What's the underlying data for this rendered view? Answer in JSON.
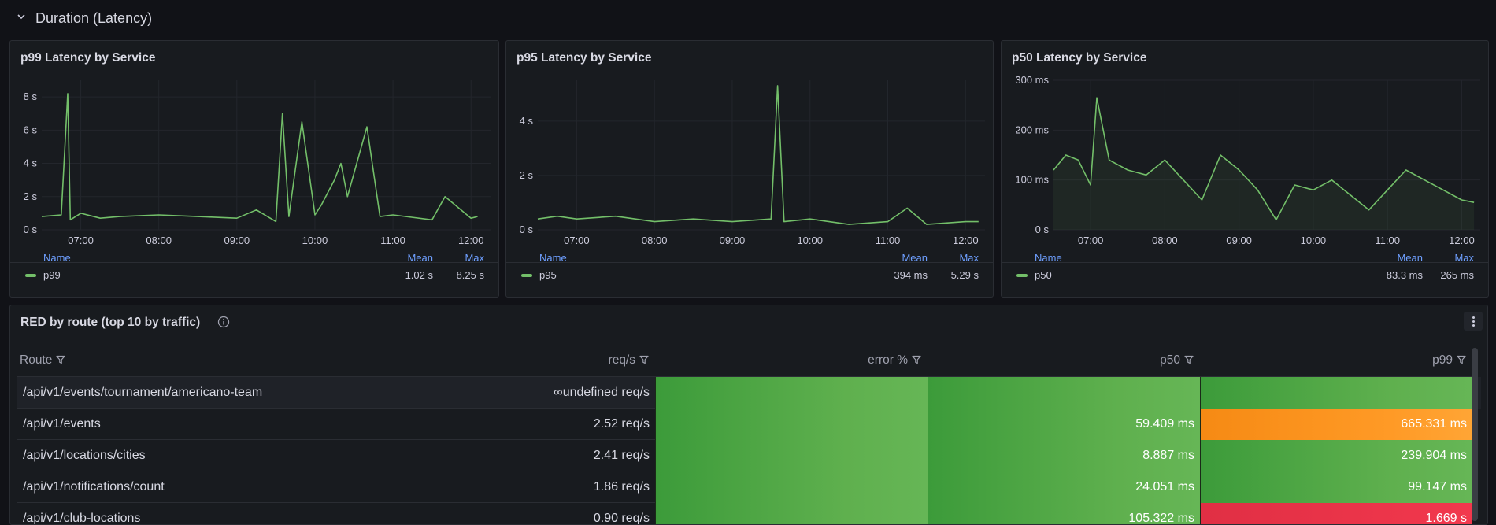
{
  "row": {
    "title": "Duration (Latency)"
  },
  "panels": [
    {
      "title": "p99 Latency by Service",
      "y_ticks": [
        "8 s",
        "6 s",
        "4 s",
        "2 s",
        "0 s"
      ],
      "x_ticks": [
        "07:00",
        "08:00",
        "09:00",
        "10:00",
        "11:00",
        "12:00"
      ],
      "legend": {
        "name_header": "Name",
        "mean_header": "Mean",
        "max_header": "Max",
        "series": "p99",
        "mean": "1.02 s",
        "max": "8.25 s"
      }
    },
    {
      "title": "p95 Latency by Service",
      "y_ticks": [
        "4 s",
        "2 s",
        "0 s"
      ],
      "x_ticks": [
        "07:00",
        "08:00",
        "09:00",
        "10:00",
        "11:00",
        "12:00"
      ],
      "legend": {
        "name_header": "Name",
        "mean_header": "Mean",
        "max_header": "Max",
        "series": "p95",
        "mean": "394 ms",
        "max": "5.29 s"
      }
    },
    {
      "title": "p50 Latency by Service",
      "y_ticks": [
        "300 ms",
        "200 ms",
        "100 ms",
        "0 s"
      ],
      "x_ticks": [
        "07:00",
        "08:00",
        "09:00",
        "10:00",
        "11:00",
        "12:00"
      ],
      "legend": {
        "name_header": "Name",
        "mean_header": "Mean",
        "max_header": "Max",
        "series": "p50",
        "mean": "83.3 ms",
        "max": "265 ms"
      }
    }
  ],
  "chart_data": [
    {
      "type": "line",
      "title": "p99 Latency by Service",
      "series": [
        {
          "name": "p99",
          "unit": "s",
          "x": [
            "06:30",
            "06:45",
            "06:50",
            "06:52",
            "07:00",
            "07:15",
            "07:30",
            "08:00",
            "08:30",
            "09:00",
            "09:15",
            "09:30",
            "09:35",
            "09:40",
            "09:50",
            "10:00",
            "10:05",
            "10:15",
            "10:20",
            "10:25",
            "10:40",
            "10:50",
            "11:00",
            "11:30",
            "11:40",
            "12:00",
            "12:05"
          ],
          "values": [
            0.8,
            0.9,
            8.2,
            0.6,
            1.0,
            0.7,
            0.8,
            0.9,
            0.8,
            0.7,
            1.2,
            0.5,
            7.0,
            0.8,
            6.5,
            0.9,
            1.5,
            3.0,
            4.0,
            2.0,
            6.2,
            0.8,
            0.9,
            0.6,
            2.0,
            0.7,
            0.8
          ]
        }
      ],
      "ylim": [
        0,
        9
      ],
      "grid": true,
      "legend": "bottom"
    },
    {
      "type": "line",
      "title": "p95 Latency by Service",
      "series": [
        {
          "name": "p95",
          "unit": "s",
          "x": [
            "06:30",
            "06:45",
            "07:00",
            "07:30",
            "08:00",
            "08:30",
            "09:00",
            "09:30",
            "09:35",
            "09:40",
            "10:00",
            "10:30",
            "11:00",
            "11:15",
            "11:30",
            "12:00",
            "12:10"
          ],
          "values": [
            0.4,
            0.5,
            0.4,
            0.5,
            0.3,
            0.4,
            0.3,
            0.4,
            5.3,
            0.3,
            0.4,
            0.2,
            0.3,
            0.8,
            0.2,
            0.3,
            0.3
          ]
        }
      ],
      "ylim": [
        0,
        5.5
      ],
      "grid": true,
      "legend": "bottom"
    },
    {
      "type": "line",
      "title": "p50 Latency by Service",
      "series": [
        {
          "name": "p50",
          "unit": "ms",
          "x": [
            "06:30",
            "06:40",
            "06:50",
            "07:00",
            "07:05",
            "07:15",
            "07:30",
            "07:45",
            "08:00",
            "08:15",
            "08:30",
            "08:45",
            "09:00",
            "09:15",
            "09:30",
            "09:45",
            "10:00",
            "10:15",
            "10:30",
            "10:45",
            "11:00",
            "11:15",
            "11:30",
            "11:45",
            "12:00",
            "12:10"
          ],
          "values": [
            120,
            150,
            140,
            90,
            265,
            140,
            120,
            110,
            140,
            100,
            60,
            150,
            120,
            80,
            20,
            90,
            80,
            100,
            70,
            40,
            80,
            120,
            100,
            80,
            60,
            55
          ]
        }
      ],
      "ylim": [
        0,
        300
      ],
      "grid": true,
      "legend": "bottom"
    }
  ],
  "table": {
    "title": "RED by route (top 10 by traffic)",
    "columns": [
      "Route",
      "req/s",
      "error %",
      "p50",
      "p99"
    ],
    "rows": [
      {
        "route": "/api/v1/events/tournament/americano-team",
        "reqs": "∞undefined req/s",
        "err": "",
        "p50": "",
        "p99": "",
        "p99_status": "green"
      },
      {
        "route": "/api/v1/events",
        "reqs": "2.52 req/s",
        "err": "",
        "p50": "59.409 ms",
        "p99": "665.331 ms",
        "p99_status": "orange"
      },
      {
        "route": "/api/v1/locations/cities",
        "reqs": "2.41 req/s",
        "err": "",
        "p50": "8.887 ms",
        "p99": "239.904 ms",
        "p99_status": "green"
      },
      {
        "route": "/api/v1/notifications/count",
        "reqs": "1.86 req/s",
        "err": "",
        "p50": "24.051 ms",
        "p99": "99.147 ms",
        "p99_status": "green"
      },
      {
        "route": "/api/v1/club-locations",
        "reqs": "0.90 req/s",
        "err": "",
        "p50": "105.322 ms",
        "p99": "1.669 s",
        "p99_status": "red"
      }
    ]
  },
  "colors": {
    "series": "#73bf69",
    "accent": "#6e9fff",
    "orange": "#ff9830",
    "red": "#f2384d",
    "green": "#56a64b"
  }
}
